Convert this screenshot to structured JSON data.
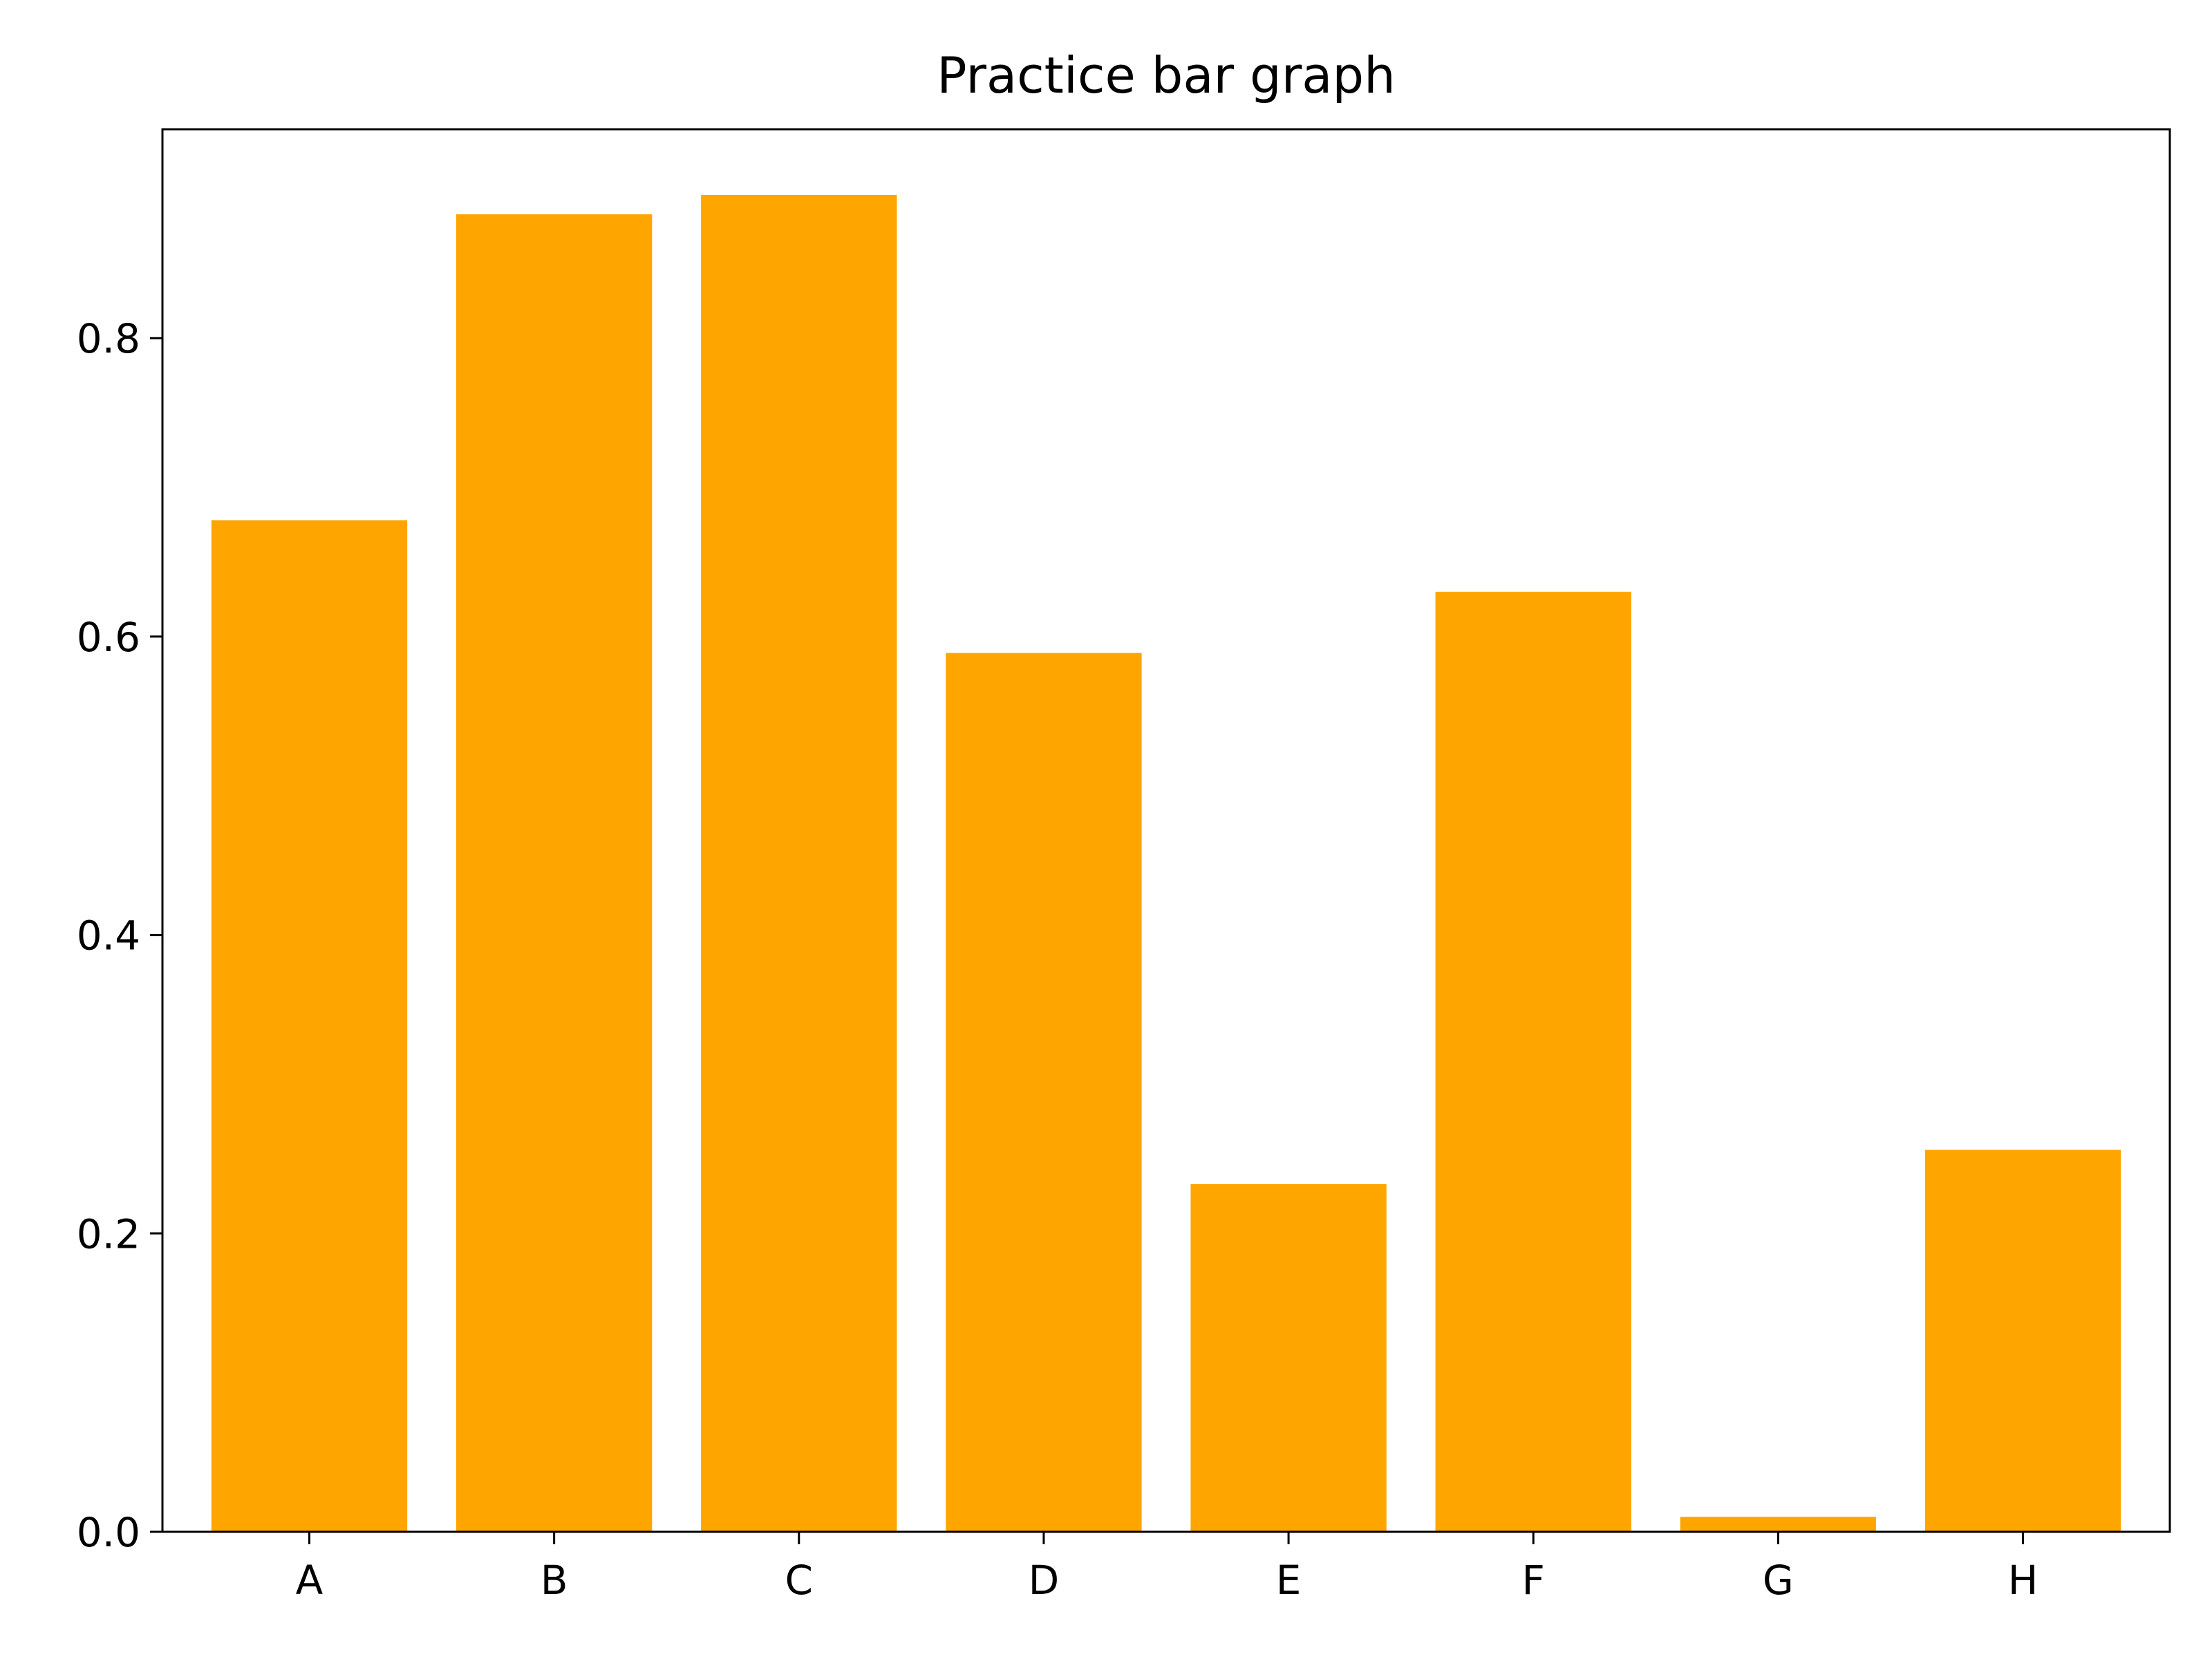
{
  "chart_data": {
    "type": "bar",
    "title": "Practice bar graph",
    "xlabel": "",
    "ylabel": "",
    "categories": [
      "A",
      "B",
      "C",
      "D",
      "E",
      "F",
      "G",
      "H"
    ],
    "values": [
      0.678,
      0.883,
      0.896,
      0.589,
      0.233,
      0.63,
      0.01,
      0.256
    ],
    "ylim": [
      0,
      0.94
    ],
    "yticks": [
      0.0,
      0.2,
      0.4,
      0.6,
      0.8
    ],
    "ytick_labels": [
      "0.0",
      "0.2",
      "0.4",
      "0.6",
      "0.8"
    ],
    "grid": false,
    "legend": "none",
    "colors": {
      "bar": "#ffa500",
      "axis": "#000000",
      "background": "#ffffff"
    }
  }
}
